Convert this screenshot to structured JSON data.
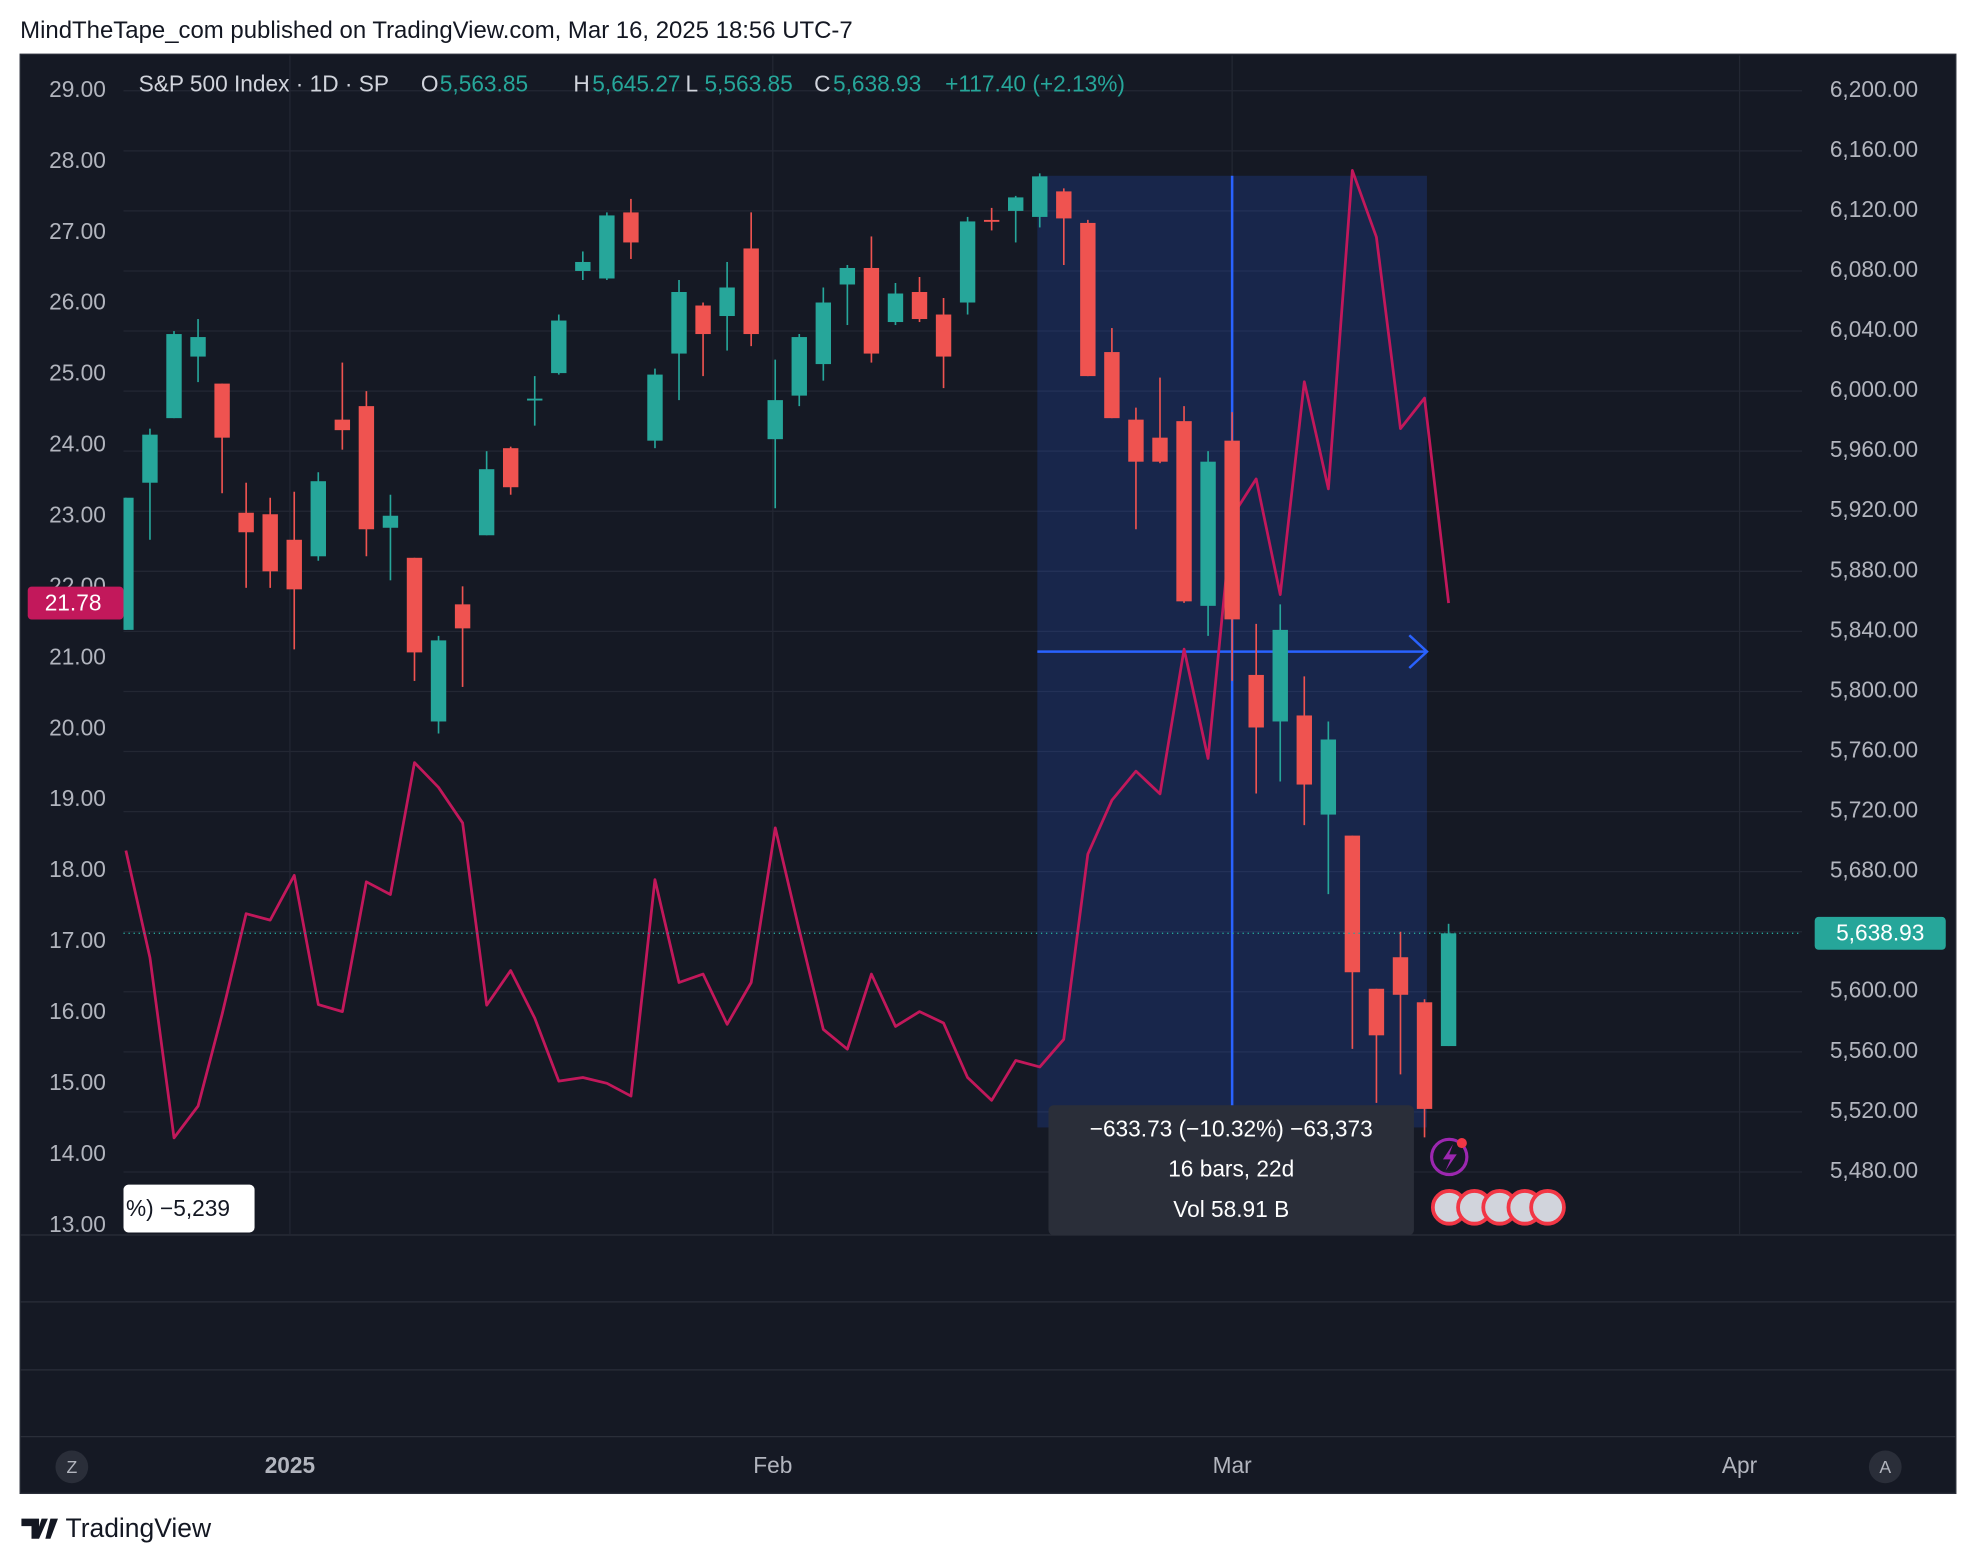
{
  "header": {
    "title": "MindTheTape_com published on TradingView.com, Mar 16, 2025 18:56 UTC-7"
  },
  "footer": {
    "brand": "TradingView"
  },
  "toolbar": {
    "left": "Z",
    "right": "A"
  },
  "chart_data": {
    "type": "candlestick",
    "legend": {
      "symbol": "S&P 500 Index · 1D · SP",
      "ohlc": [
        {
          "key": "O",
          "value": "5,563.85"
        },
        {
          "key": "H",
          "value": "5,645.27"
        },
        {
          "key": "L",
          "value": "5,563.85"
        },
        {
          "key": "C",
          "value": "5,638.93"
        }
      ],
      "change": "+117.40 (+2.13%)"
    },
    "x": [
      0,
      1,
      2,
      3,
      4,
      5,
      6,
      7,
      8,
      9,
      10,
      11,
      12,
      13,
      14,
      15,
      16,
      17,
      18,
      19,
      20,
      21,
      22,
      23,
      24,
      25,
      26,
      27,
      28,
      29,
      30,
      31,
      32,
      33,
      34,
      35,
      36,
      37,
      38,
      39,
      40,
      41,
      42,
      43,
      44,
      45,
      46,
      47,
      48,
      49,
      50,
      51,
      52,
      53,
      54,
      55
    ],
    "xlim": [
      -0.1,
      69.7
    ],
    "xticks": [
      {
        "value": 6.82,
        "label": "2025"
      },
      {
        "value": 26.9,
        "label": "Feb"
      },
      {
        "value": 46,
        "label": "Mar"
      },
      {
        "value": 67.1,
        "label": "Apr"
      }
    ],
    "open": [
      5841,
      5939,
      5982,
      6023,
      6005,
      5919,
      5918,
      5901,
      5890,
      5981,
      5990,
      5909,
      5889,
      5780,
      5858,
      5904,
      5962,
      5994,
      6012,
      6080,
      6075,
      6119,
      5967,
      6025,
      6057,
      6050,
      6095,
      5968,
      5997,
      6018,
      6071,
      6082,
      6046,
      6066,
      6051,
      6059,
      6114,
      6120,
      6116,
      6133,
      6112,
      6026,
      5981,
      5969,
      5980,
      5857,
      5967,
      5811,
      5780,
      5784,
      5718,
      5704,
      5602,
      5623,
      5593,
      5563.85
    ],
    "high": [
      5929,
      5975,
      6040,
      6048,
      6005,
      5939,
      5929,
      5933,
      5946,
      6019,
      6000,
      5931,
      5889,
      5837,
      5870,
      5960,
      5963,
      6010,
      6051,
      6093,
      6119,
      6128,
      6015,
      6074,
      6059,
      6086,
      6119,
      6021,
      6038,
      6069,
      6084,
      6103,
      6072,
      6076,
      6062,
      6116,
      6122,
      6130,
      6145,
      6135,
      6114,
      6042,
      5989,
      6009,
      5990,
      5960,
      5986,
      5845,
      5858,
      5810,
      5780,
      5704,
      5602,
      5640,
      5595,
      5645.27
    ],
    "low": [
      5841,
      5901,
      5982,
      6006,
      5932,
      5869,
      5869,
      5828,
      5887,
      5961,
      5890,
      5874,
      5807,
      5772,
      5803,
      5904,
      5931,
      5977,
      6011,
      6074,
      6074,
      6088,
      5962,
      5994,
      6010,
      6027,
      6030,
      5922,
      5990,
      6007,
      6044,
      6019,
      6044,
      6046,
      6002,
      6051,
      6107,
      6099,
      6109,
      6084,
      6010,
      5982,
      5908,
      5952,
      5859,
      5837,
      5807,
      5732,
      5740,
      5711,
      5665,
      5562,
      5526,
      5545,
      5503,
      5563.85
    ],
    "close": [
      5929,
      5971,
      6038,
      6036,
      5969,
      5906,
      5880,
      5868,
      5940,
      5974,
      5908,
      5917,
      5826,
      5834,
      5842,
      5948,
      5936,
      5995,
      6047,
      6086,
      6117,
      6099,
      6011,
      6066,
      6038,
      6069,
      6038,
      5994,
      6036,
      6059,
      6082,
      6025,
      6065,
      6048,
      6023,
      6113,
      6113,
      6129,
      6143,
      6115,
      6010,
      5982,
      5953,
      5953,
      5860,
      5953,
      5848,
      5776,
      5841,
      5738,
      5768,
      5613,
      5571,
      5598,
      5522,
      5638.93
    ],
    "up_color": "#26a69a",
    "down_color": "#ef5350",
    "ylim": [
      5438,
      6223.5
    ],
    "yticks": [
      {
        "value": 5480,
        "label": "5,480.00"
      },
      {
        "value": 5520,
        "label": "5,520.00"
      },
      {
        "value": 5560,
        "label": "5,560.00"
      },
      {
        "value": 5600,
        "label": "5,600.00"
      },
      {
        "value": 5640,
        "label": "5,640.00"
      },
      {
        "value": 5680,
        "label": "5,680.00"
      },
      {
        "value": 5720,
        "label": "5,720.00"
      },
      {
        "value": 5760,
        "label": "5,760.00"
      },
      {
        "value": 5800,
        "label": "5,800.00"
      },
      {
        "value": 5840,
        "label": "5,840.00"
      },
      {
        "value": 5880,
        "label": "5,880.00"
      },
      {
        "value": 5920,
        "label": "5,920.00"
      },
      {
        "value": 5960,
        "label": "5,960.00"
      },
      {
        "value": 6000,
        "label": "6,000.00"
      },
      {
        "value": 6040,
        "label": "6,040.00"
      },
      {
        "value": 6080,
        "label": "6,080.00"
      },
      {
        "value": 6120,
        "label": "6,120.00"
      },
      {
        "value": 6160,
        "label": "6,160.00"
      },
      {
        "value": 6200,
        "label": "6,200.00"
      }
    ],
    "last_price": {
      "value": 5638.93,
      "label": "5,638.93",
      "color": "#26a69a"
    },
    "y2lim": [
      12.87,
      29.5
    ],
    "y2ticks": [
      {
        "value": 13,
        "label": "13.00"
      },
      {
        "value": 14,
        "label": "14.00"
      },
      {
        "value": 15,
        "label": "15.00"
      },
      {
        "value": 16,
        "label": "16.00"
      },
      {
        "value": 17,
        "label": "17.00"
      },
      {
        "value": 18,
        "label": "18.00"
      },
      {
        "value": 19,
        "label": "19.00"
      },
      {
        "value": 20,
        "label": "20.00"
      },
      {
        "value": 21,
        "label": "21.00"
      },
      {
        "value": 22,
        "label": "22.00"
      },
      {
        "value": 23,
        "label": "23.00"
      },
      {
        "value": 24,
        "label": "24.00"
      },
      {
        "value": 25,
        "label": "25.00"
      },
      {
        "value": 26,
        "label": "26.00"
      },
      {
        "value": 27,
        "label": "27.00"
      },
      {
        "value": 28,
        "label": "28.00"
      },
      {
        "value": 29,
        "label": "29.00"
      }
    ],
    "overlay": {
      "type": "line",
      "axis": "y2",
      "color": "#c2185b",
      "values": [
        18.29,
        16.78,
        14.24,
        14.69,
        15.98,
        17.4,
        17.31,
        17.94,
        16.12,
        16.02,
        17.85,
        17.67,
        19.53,
        19.18,
        18.68,
        16.11,
        16.6,
        15.93,
        15.04,
        15.09,
        15.01,
        14.83,
        17.88,
        16.43,
        16.55,
        15.84,
        16.43,
        18.61,
        17.17,
        15.77,
        15.49,
        16.55,
        15.81,
        16.02,
        15.86,
        15.09,
        14.77,
        15.33,
        15.24,
        15.63,
        18.24,
        19.0,
        19.41,
        19.09,
        21.13,
        19.59,
        23.0,
        23.53,
        21.9,
        24.9,
        23.39,
        27.88,
        26.94,
        24.24,
        24.67,
        21.78
      ],
      "last_label": "21.78"
    },
    "grid": true,
    "measure": {
      "bars": [
        38,
        54
      ],
      "price_from": 6143.38,
      "price_to": 5509.65,
      "lines": [
        "−633.73 (−10.32%) −63,373",
        "16 bars, 22d",
        "Vol 58.91 B"
      ]
    },
    "cut_label": "%) −5,239"
  }
}
